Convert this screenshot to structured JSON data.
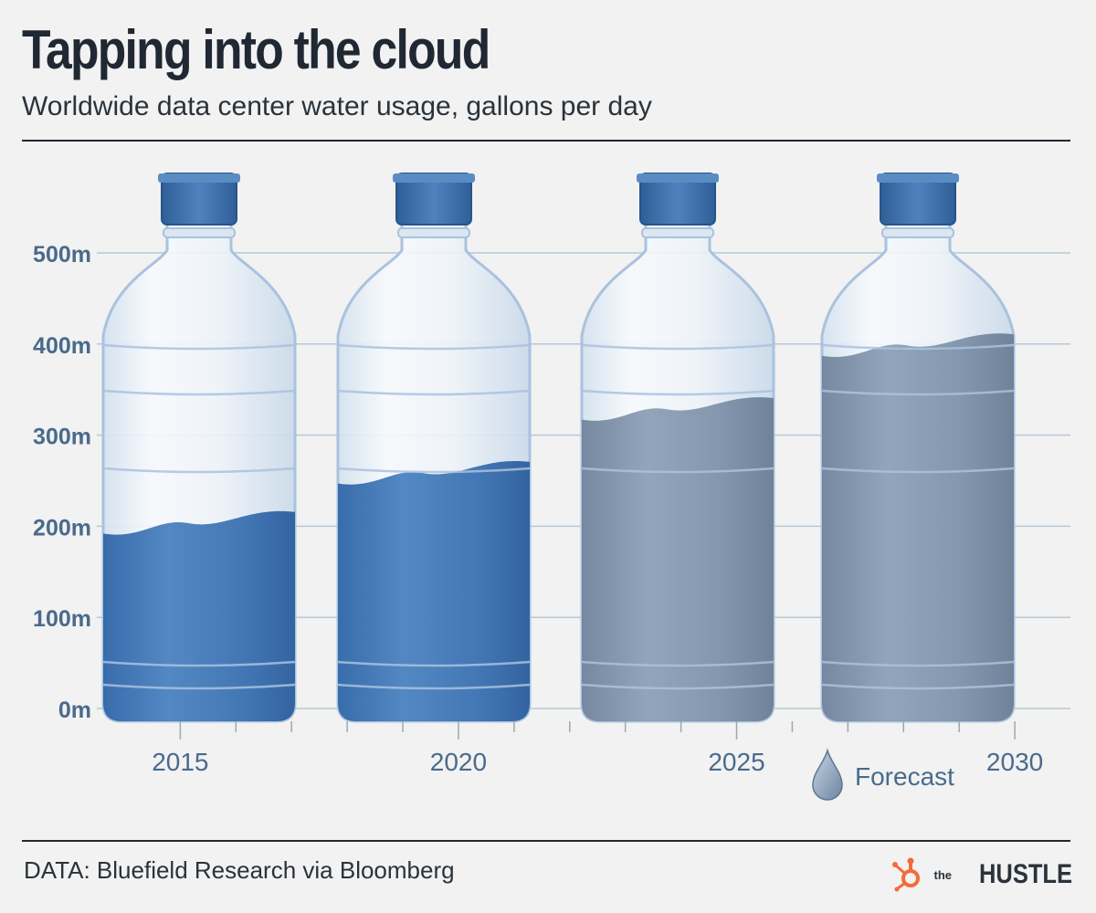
{
  "header": {
    "title": "Tapping into the cloud",
    "subtitle": "Worldwide data center water usage, gallons per day"
  },
  "footer": {
    "source": "DATA: Bluefield Research via Bloomberg",
    "brand_prefix": "the",
    "brand_name": "HUSTLE",
    "brand_icon": "hubspot-sprocket-icon"
  },
  "colors": {
    "actual_water": "#3f77b8",
    "forecast_water": "#7b8fa6",
    "bottle_fill": "#e6eef7",
    "bottle_stroke": "#a9c2de",
    "axis_text": "#4a6a8c",
    "grid": "#b8c7d6",
    "brand_orange": "#f26b3a"
  },
  "chart_data": {
    "type": "bar",
    "title": "Tapping into the cloud",
    "subtitle": "Worldwide data center water usage, gallons per day",
    "categories": [
      "2015",
      "2020",
      "2025",
      "2030"
    ],
    "series": [
      {
        "kind": "actual",
        "values": [
          205,
          260,
          null,
          null
        ]
      },
      {
        "kind": "forecast",
        "values": [
          null,
          null,
          330,
          400
        ]
      }
    ],
    "y_ticks": [
      "0m",
      "100m",
      "200m",
      "300m",
      "400m",
      "500m"
    ],
    "y_tick_values": [
      0,
      100,
      200,
      300,
      400,
      500
    ],
    "ylim": [
      0,
      500
    ],
    "x_ticks": [
      "2015",
      "2020",
      "2025",
      "2030"
    ],
    "x_tick_values": [
      2015,
      2020,
      2025,
      2030
    ],
    "xlim": [
      2013.5,
      2031
    ],
    "legend": {
      "label": "Forecast",
      "icon": "water-drop-icon",
      "placement": "bottom-right"
    },
    "grid": true,
    "bar_style": "water-bottle"
  }
}
